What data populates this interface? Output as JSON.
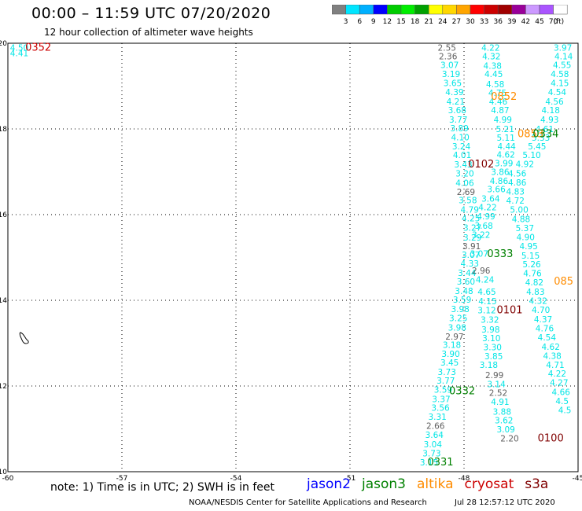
{
  "title": "00:00 – 11:59 UTC 07/20/2020",
  "subtitle": "12 hour collection of altimeter wave heights",
  "note": "note: 1) Time is in UTC; 2) SWH is in feet",
  "footer_left": "NOAA/NESDIS Center for Satellite Applications and Research",
  "footer_right": "Jul 28 12:57:12 UTC 2020",
  "legend": [
    {
      "name": "jason2",
      "color": "#0000ff"
    },
    {
      "name": "jason3",
      "color": "#008000"
    },
    {
      "name": "altika",
      "color": "#ff8c00"
    },
    {
      "name": "cryosat",
      "color": "#cc0000"
    },
    {
      "name": "s3a",
      "color": "#800000"
    }
  ],
  "colorbar": {
    "unit": "(ft)",
    "labels": [
      "3",
      "6",
      "9",
      "12",
      "15",
      "18",
      "21",
      "24",
      "27",
      "30",
      "33",
      "36",
      "39",
      "42",
      "45",
      "70"
    ],
    "colors": [
      "#808080",
      "#00e5ff",
      "#00b0ff",
      "#0000ff",
      "#00cc00",
      "#00ee00",
      "#00a000",
      "#ffff00",
      "#ffd700",
      "#ffa500",
      "#ff0000",
      "#cc0000",
      "#a00000",
      "#990099",
      "#cc99ff",
      "#aa55ff",
      "#ffffff"
    ]
  },
  "chart_data": {
    "type": "scatter",
    "title": "00:00 – 11:59 UTC 07/20/2020",
    "subtitle": "12 hour collection of altimeter wave heights",
    "xlim": [
      -60,
      -45
    ],
    "ylim": [
      10,
      20
    ],
    "x_ticks": [
      "-60",
      "-57",
      "-54",
      "-51",
      "-48",
      "-45"
    ],
    "y_ticks": [
      "10",
      "12",
      "14",
      "16",
      "18",
      "20"
    ],
    "grid": true,
    "series": [
      {
        "name": "track-a",
        "color": "#00e5e5",
        "points": [
          {
            "x": -59.7,
            "y": 19.9,
            "v": "4.50"
          },
          {
            "x": -59.7,
            "y": 19.77,
            "v": "4.41"
          }
        ]
      },
      {
        "name": "track-b",
        "color": "#00e5e5",
        "points": [
          {
            "x": -48.45,
            "y": 19.9,
            "v": "2.55",
            "c": "#606060"
          },
          {
            "x": -48.42,
            "y": 19.7,
            "v": "2.36",
            "c": "#606060"
          },
          {
            "x": -48.38,
            "y": 19.5,
            "v": "3.07"
          },
          {
            "x": -48.34,
            "y": 19.28,
            "v": "3.19"
          },
          {
            "x": -48.3,
            "y": 19.07,
            "v": "3.65"
          },
          {
            "x": -48.25,
            "y": 18.86,
            "v": "4.39"
          },
          {
            "x": -48.22,
            "y": 18.64,
            "v": "4.21"
          },
          {
            "x": -48.18,
            "y": 18.44,
            "v": "3.68"
          },
          {
            "x": -48.15,
            "y": 18.22,
            "v": "3.77"
          },
          {
            "x": -48.12,
            "y": 18.02,
            "v": "3.89"
          },
          {
            "x": -48.1,
            "y": 17.81,
            "v": "4.10"
          },
          {
            "x": -48.07,
            "y": 17.6,
            "v": "3.24"
          },
          {
            "x": -48.05,
            "y": 17.39,
            "v": "4.01"
          },
          {
            "x": -48.02,
            "y": 17.17,
            "v": "3.43"
          },
          {
            "x": -47.98,
            "y": 16.96,
            "v": "3.20"
          },
          {
            "x": -47.98,
            "y": 16.74,
            "v": "4.06"
          },
          {
            "x": -47.95,
            "y": 16.53,
            "v": "2.69",
            "c": "#606060"
          },
          {
            "x": -47.9,
            "y": 16.34,
            "v": "3.58"
          },
          {
            "x": -47.85,
            "y": 16.12,
            "v": "4.79"
          },
          {
            "x": -47.82,
            "y": 15.92,
            "v": "4.25"
          },
          {
            "x": -47.78,
            "y": 15.7,
            "v": "3.27"
          },
          {
            "x": -47.78,
            "y": 15.47,
            "v": "3.29"
          },
          {
            "x": -47.8,
            "y": 15.27,
            "v": "3.91",
            "c": "#606060"
          },
          {
            "x": -47.82,
            "y": 15.06,
            "v": "3.07"
          },
          {
            "x": -47.85,
            "y": 14.86,
            "v": "4.33"
          },
          {
            "x": -47.92,
            "y": 14.64,
            "v": "3.44"
          },
          {
            "x": -47.95,
            "y": 14.44,
            "v": "3.60"
          },
          {
            "x": -48.0,
            "y": 14.22,
            "v": "3.48"
          },
          {
            "x": -48.05,
            "y": 14.02,
            "v": "3.59"
          },
          {
            "x": -48.1,
            "y": 13.8,
            "v": "3.98"
          },
          {
            "x": -48.15,
            "y": 13.59,
            "v": "3.25"
          },
          {
            "x": -48.18,
            "y": 13.37,
            "v": "3.98"
          },
          {
            "x": -48.25,
            "y": 13.16,
            "v": "2.97",
            "c": "#606060"
          },
          {
            "x": -48.32,
            "y": 12.96,
            "v": "3.18"
          },
          {
            "x": -48.35,
            "y": 12.75,
            "v": "3.90"
          },
          {
            "x": -48.38,
            "y": 12.55,
            "v": "3.45"
          },
          {
            "x": -48.45,
            "y": 12.33,
            "v": "3.73"
          },
          {
            "x": -48.48,
            "y": 12.13,
            "v": "3.77"
          },
          {
            "x": -48.55,
            "y": 11.92,
            "v": "3.59"
          },
          {
            "x": -48.6,
            "y": 11.7,
            "v": "3.37"
          },
          {
            "x": -48.62,
            "y": 11.5,
            "v": "3.56"
          },
          {
            "x": -48.7,
            "y": 11.28,
            "v": "3.31"
          },
          {
            "x": -48.75,
            "y": 11.07,
            "v": "2.66",
            "c": "#606060"
          },
          {
            "x": -48.78,
            "y": 10.86,
            "v": "3.64"
          },
          {
            "x": -48.82,
            "y": 10.64,
            "v": "3.04"
          },
          {
            "x": -48.85,
            "y": 10.43,
            "v": "3.73"
          },
          {
            "x": -48.92,
            "y": 10.22,
            "v": "3.15"
          }
        ]
      },
      {
        "name": "track-c",
        "color": "#00e5e5",
        "points": [
          {
            "x": -47.3,
            "y": 19.9,
            "v": "4.22"
          },
          {
            "x": -47.28,
            "y": 19.7,
            "v": "4.32"
          },
          {
            "x": -47.25,
            "y": 19.48,
            "v": "4.38"
          },
          {
            "x": -47.22,
            "y": 19.28,
            "v": "4.45"
          },
          {
            "x": -47.18,
            "y": 19.05,
            "v": "4.58"
          },
          {
            "x": -47.12,
            "y": 18.84,
            "v": "4.75"
          },
          {
            "x": -47.1,
            "y": 18.64,
            "v": "4.46"
          },
          {
            "x": -47.05,
            "y": 18.44,
            "v": "4.87"
          },
          {
            "x": -46.98,
            "y": 18.22,
            "v": "4.99"
          },
          {
            "x": -46.92,
            "y": 18.0,
            "v": "5.21"
          },
          {
            "x": -46.9,
            "y": 17.8,
            "v": "5.11"
          },
          {
            "x": -46.88,
            "y": 17.6,
            "v": "4.44"
          },
          {
            "x": -46.9,
            "y": 17.4,
            "v": "4.62"
          },
          {
            "x": -46.95,
            "y": 17.2,
            "v": "3.99"
          },
          {
            "x": -47.05,
            "y": 17.0,
            "v": "3.86"
          },
          {
            "x": -47.08,
            "y": 16.79,
            "v": "4.86"
          },
          {
            "x": -47.15,
            "y": 16.6,
            "v": "3.66"
          },
          {
            "x": -47.3,
            "y": 16.38,
            "v": "3.64"
          },
          {
            "x": -47.38,
            "y": 16.17,
            "v": "4.22"
          },
          {
            "x": -47.42,
            "y": 15.96,
            "v": "4.99"
          },
          {
            "x": -47.48,
            "y": 15.74,
            "v": "3.68"
          },
          {
            "x": -47.55,
            "y": 15.53,
            "v": "3.22"
          },
          {
            "x": -47.6,
            "y": 15.09,
            "v": "3.07"
          },
          {
            "x": -47.55,
            "y": 14.7,
            "v": "2.96",
            "c": "#606060"
          },
          {
            "x": -47.45,
            "y": 14.49,
            "v": "4.24"
          },
          {
            "x": -47.4,
            "y": 14.2,
            "v": "4.65"
          },
          {
            "x": -47.38,
            "y": 13.98,
            "v": "4.15"
          },
          {
            "x": -47.4,
            "y": 13.77,
            "v": "3.12"
          },
          {
            "x": -47.32,
            "y": 13.55,
            "v": "3.32"
          },
          {
            "x": -47.3,
            "y": 13.32,
            "v": "3.98"
          },
          {
            "x": -47.28,
            "y": 13.12,
            "v": "3.10"
          },
          {
            "x": -47.25,
            "y": 12.91,
            "v": "3.30"
          },
          {
            "x": -47.22,
            "y": 12.7,
            "v": "3.85"
          },
          {
            "x": -47.35,
            "y": 12.5,
            "v": "3.18"
          },
          {
            "x": -47.2,
            "y": 12.26,
            "v": "2.99",
            "c": "#606060"
          },
          {
            "x": -47.15,
            "y": 12.05,
            "v": "3.14"
          },
          {
            "x": -47.1,
            "y": 11.84,
            "v": "2.52",
            "c": "#606060"
          },
          {
            "x": -47.05,
            "y": 11.63,
            "v": "4.91"
          },
          {
            "x": -47.0,
            "y": 11.4,
            "v": "3.88"
          },
          {
            "x": -46.95,
            "y": 11.2,
            "v": "3.62"
          },
          {
            "x": -46.9,
            "y": 10.99,
            "v": "3.09"
          },
          {
            "x": -46.8,
            "y": 10.78,
            "v": "2.20",
            "c": "#606060"
          }
        ]
      },
      {
        "name": "track-d",
        "color": "#00e5e5",
        "points": [
          {
            "x": -45.4,
            "y": 19.9,
            "v": "3.97"
          },
          {
            "x": -45.38,
            "y": 19.7,
            "v": "4.14"
          },
          {
            "x": -45.42,
            "y": 19.5,
            "v": "4.55"
          },
          {
            "x": -45.48,
            "y": 19.28,
            "v": "4.58"
          },
          {
            "x": -45.48,
            "y": 19.07,
            "v": "4.15"
          },
          {
            "x": -45.55,
            "y": 18.86,
            "v": "4.54"
          },
          {
            "x": -45.62,
            "y": 18.64,
            "v": "4.56"
          },
          {
            "x": -45.72,
            "y": 18.44,
            "v": "4.18"
          },
          {
            "x": -45.75,
            "y": 18.22,
            "v": "4.93"
          },
          {
            "x": -45.88,
            "y": 18.0,
            "v": "4.61"
          },
          {
            "x": -45.98,
            "y": 17.8,
            "v": "5.33"
          },
          {
            "x": -46.08,
            "y": 17.6,
            "v": "5.45"
          },
          {
            "x": -46.22,
            "y": 17.39,
            "v": "5.10"
          },
          {
            "x": -46.4,
            "y": 17.18,
            "v": "4.92"
          },
          {
            "x": -46.6,
            "y": 16.96,
            "v": "4.56"
          },
          {
            "x": -46.6,
            "y": 16.75,
            "v": "4.86"
          },
          {
            "x": -46.65,
            "y": 16.54,
            "v": "4.83"
          },
          {
            "x": -46.65,
            "y": 16.33,
            "v": "4.72"
          },
          {
            "x": -46.55,
            "y": 16.12,
            "v": "5.00"
          },
          {
            "x": -46.5,
            "y": 15.9,
            "v": "4.88"
          },
          {
            "x": -46.4,
            "y": 15.69,
            "v": "5.37"
          },
          {
            "x": -46.38,
            "y": 15.48,
            "v": "4.90"
          },
          {
            "x": -46.3,
            "y": 15.27,
            "v": "4.95"
          },
          {
            "x": -46.25,
            "y": 15.05,
            "v": "5.15"
          },
          {
            "x": -46.22,
            "y": 14.84,
            "v": "5.26"
          },
          {
            "x": -46.2,
            "y": 14.63,
            "v": "4.76"
          },
          {
            "x": -46.15,
            "y": 14.42,
            "v": "4.82"
          },
          {
            "x": -46.12,
            "y": 14.2,
            "v": "4.83"
          },
          {
            "x": -46.05,
            "y": 13.99,
            "v": "4.32"
          },
          {
            "x": -45.98,
            "y": 13.78,
            "v": "4.70"
          },
          {
            "x": -45.92,
            "y": 13.56,
            "v": "4.37"
          },
          {
            "x": -45.88,
            "y": 13.35,
            "v": "4.76"
          },
          {
            "x": -45.82,
            "y": 13.14,
            "v": "4.54"
          },
          {
            "x": -45.72,
            "y": 12.92,
            "v": "4.62"
          },
          {
            "x": -45.68,
            "y": 12.71,
            "v": "4.38"
          },
          {
            "x": -45.6,
            "y": 12.5,
            "v": "4.71"
          },
          {
            "x": -45.55,
            "y": 12.29,
            "v": "4.22"
          },
          {
            "x": -45.5,
            "y": 12.08,
            "v": "4.27"
          },
          {
            "x": -45.45,
            "y": 11.86,
            "v": "4.66"
          },
          {
            "x": -45.42,
            "y": 11.65,
            "v": "4.5"
          },
          {
            "x": -45.35,
            "y": 11.44,
            "v": "4.5"
          }
        ]
      },
      {
        "name": "times",
        "points": [
          {
            "x": -59.2,
            "y": 19.9,
            "v": "0352",
            "c": "#cc0000"
          },
          {
            "x": -46.95,
            "y": 18.75,
            "v": "0852",
            "c": "#ff8c00"
          },
          {
            "x": -46.25,
            "y": 17.88,
            "v": "0853",
            "c": "#ff8c00"
          },
          {
            "x": -45.85,
            "y": 17.88,
            "v": "0334",
            "c": "#008000"
          },
          {
            "x": -47.55,
            "y": 17.17,
            "v": "0102",
            "c": "#800000"
          },
          {
            "x": -47.05,
            "y": 15.08,
            "v": "0333",
            "c": "#008000"
          },
          {
            "x": -46.8,
            "y": 13.77,
            "v": "0101",
            "c": "#800000"
          },
          {
            "x": -45.38,
            "y": 14.44,
            "v": "085",
            "c": "#ff8c00"
          },
          {
            "x": -48.05,
            "y": 11.88,
            "v": "0332",
            "c": "#008000"
          },
          {
            "x": -48.62,
            "y": 10.22,
            "v": "0331",
            "c": "#008000"
          },
          {
            "x": -45.72,
            "y": 10.78,
            "v": "0100",
            "c": "#800000"
          }
        ]
      }
    ]
  }
}
